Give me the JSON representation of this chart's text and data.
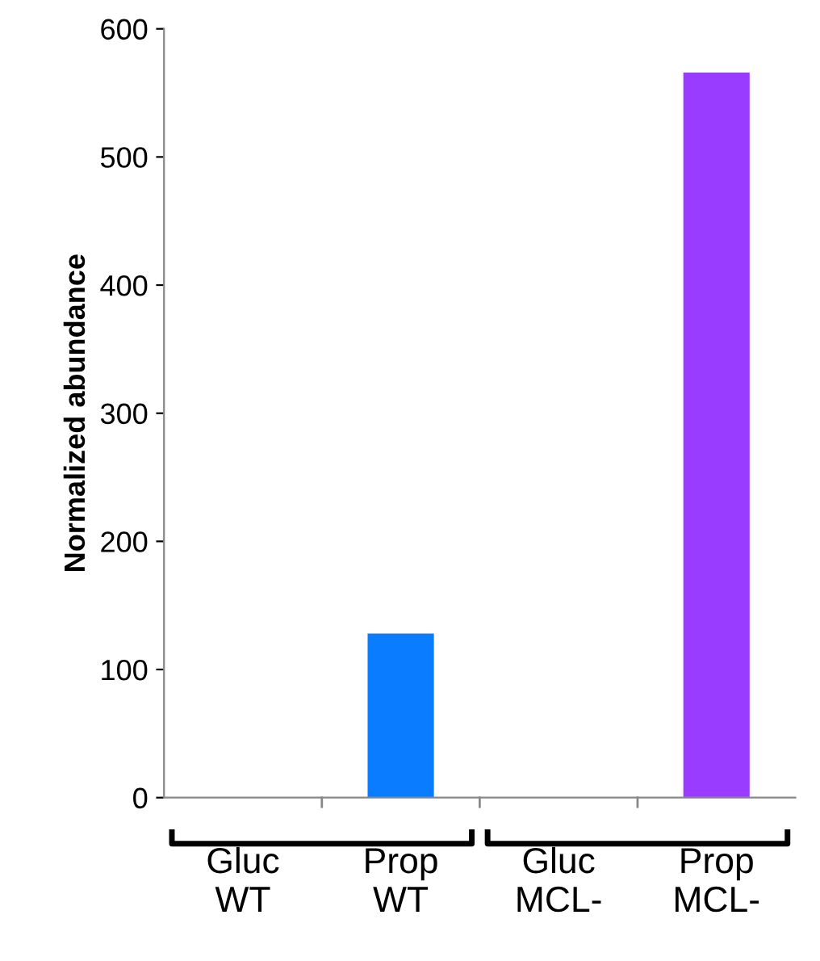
{
  "chart_data": {
    "type": "bar",
    "ylabel": "Normalized abundance",
    "categories": [
      "Gluc\nWT",
      "Prop\nWT",
      "Gluc\nMCL-",
      "Prop\nMCL-"
    ],
    "values": [
      0,
      128,
      0,
      566
    ],
    "colors": [
      "#0a7cff",
      "#0a7cff",
      "#9a3cff",
      "#9a3cff"
    ],
    "ylim": [
      0,
      600
    ],
    "yticks": [
      0,
      100,
      200,
      300,
      400,
      500,
      600
    ],
    "grid": false
  }
}
